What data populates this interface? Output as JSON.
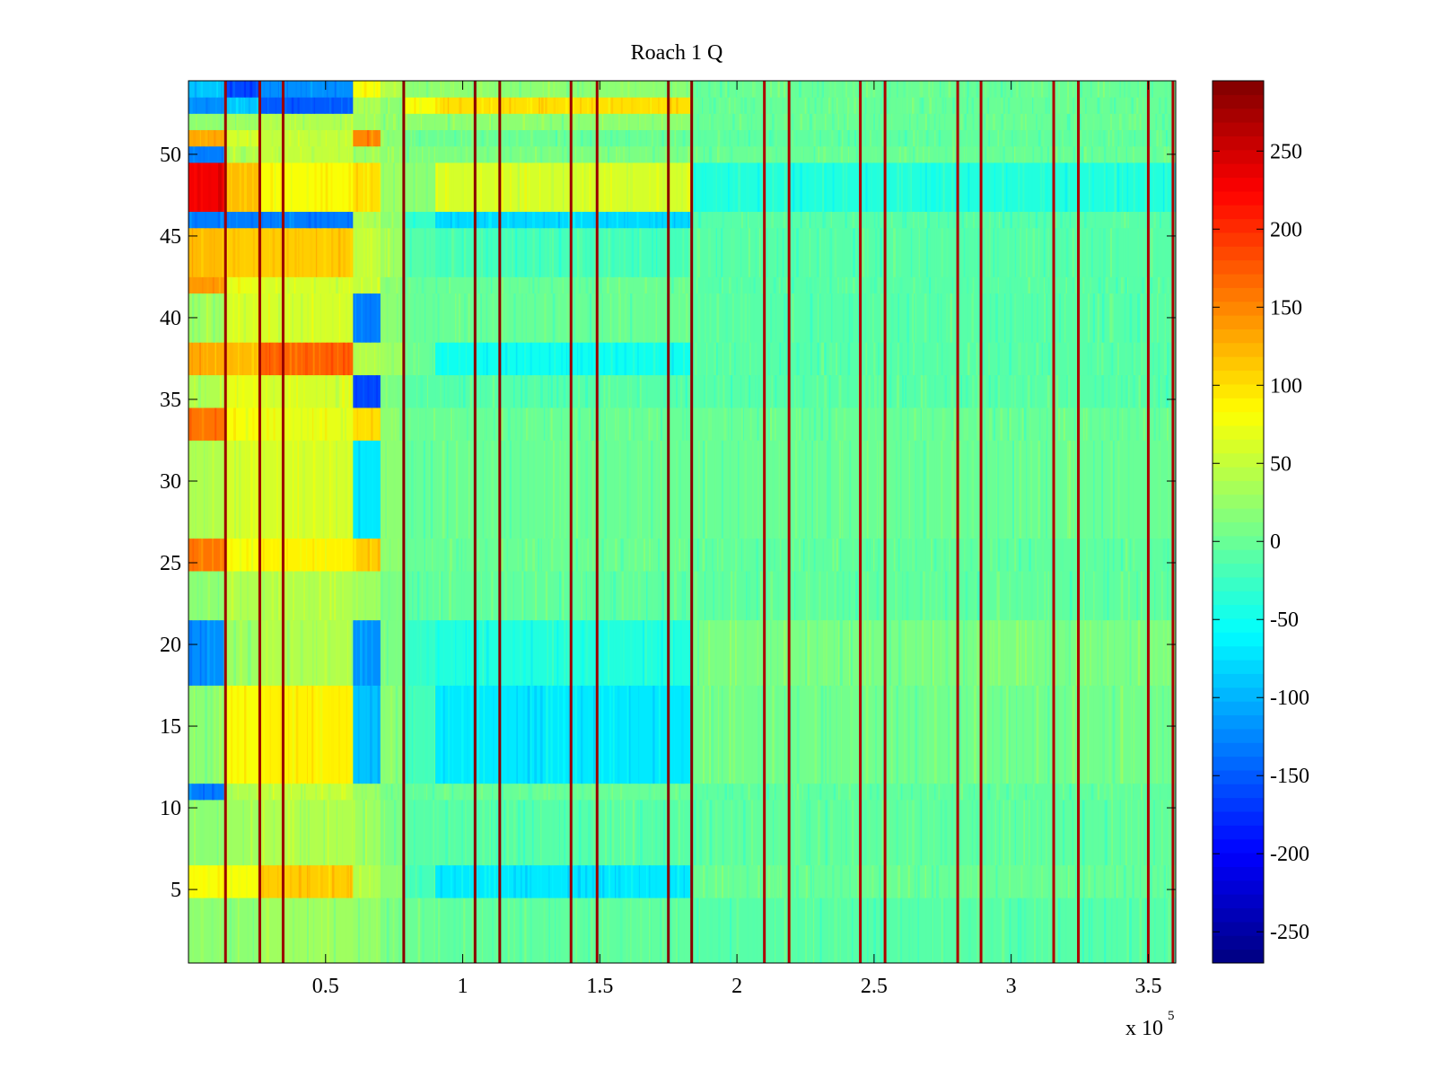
{
  "chart_data": {
    "type": "heatmap",
    "title": "Roach 1 Q",
    "xlabel": "",
    "ylabel": "",
    "x_range": [
      0,
      360000
    ],
    "y_range": [
      0.5,
      54.5
    ],
    "x_multiplier_label": "x 10",
    "x_multiplier_exponent": "5",
    "x_ticks": [
      {
        "value": 50000,
        "label": "0.5"
      },
      {
        "value": 100000,
        "label": "1"
      },
      {
        "value": 150000,
        "label": "1.5"
      },
      {
        "value": 200000,
        "label": "2"
      },
      {
        "value": 250000,
        "label": "2.5"
      },
      {
        "value": 300000,
        "label": "3"
      },
      {
        "value": 350000,
        "label": "3.5"
      }
    ],
    "y_ticks": [
      {
        "value": 5,
        "label": "5"
      },
      {
        "value": 10,
        "label": "10"
      },
      {
        "value": 15,
        "label": "15"
      },
      {
        "value": 20,
        "label": "20"
      },
      {
        "value": 25,
        "label": "25"
      },
      {
        "value": 30,
        "label": "30"
      },
      {
        "value": 35,
        "label": "35"
      },
      {
        "value": 40,
        "label": "40"
      },
      {
        "value": 45,
        "label": "45"
      },
      {
        "value": 50,
        "label": "50"
      }
    ],
    "colorbar": {
      "colormap": "jet",
      "range": [
        -270,
        295
      ],
      "ticks": [
        {
          "value": 250,
          "label": "250"
        },
        {
          "value": 200,
          "label": "200"
        },
        {
          "value": 150,
          "label": "150"
        },
        {
          "value": 100,
          "label": "100"
        },
        {
          "value": 50,
          "label": "50"
        },
        {
          "value": 0,
          "label": "0"
        },
        {
          "value": -50,
          "label": "-50"
        },
        {
          "value": -100,
          "label": "-100"
        },
        {
          "value": -150,
          "label": "-150"
        },
        {
          "value": -200,
          "label": "-200"
        },
        {
          "value": -250,
          "label": "-250"
        }
      ]
    },
    "rows": 54,
    "column_segments_x": [
      0,
      13000,
      26000,
      35000,
      60000,
      70000,
      78000,
      90000,
      184000,
      360000
    ],
    "segment_values": [
      {
        "rows": [
          1,
          4
        ],
        "values": [
          20,
          20,
          30,
          30,
          25,
          10,
          0,
          -5,
          -10
        ]
      },
      {
        "rows": [
          5,
          6
        ],
        "values": [
          80,
          80,
          110,
          110,
          40,
          20,
          -20,
          -70,
          0
        ]
      },
      {
        "rows": [
          7,
          10
        ],
        "values": [
          20,
          30,
          40,
          40,
          30,
          10,
          -10,
          -10,
          -5
        ]
      },
      {
        "rows": [
          11,
          11
        ],
        "values": [
          -130,
          40,
          50,
          50,
          30,
          10,
          -5,
          0,
          -5
        ]
      },
      {
        "rows": [
          12,
          17
        ],
        "values": [
          20,
          80,
          90,
          90,
          -90,
          20,
          -20,
          -70,
          5
        ]
      },
      {
        "rows": [
          18,
          21
        ],
        "values": [
          -120,
          30,
          40,
          40,
          -120,
          10,
          -30,
          -40,
          10
        ]
      },
      {
        "rows": [
          22,
          24
        ],
        "values": [
          20,
          40,
          40,
          40,
          30,
          10,
          -5,
          -5,
          -5
        ]
      },
      {
        "rows": [
          25,
          26
        ],
        "values": [
          160,
          80,
          90,
          90,
          110,
          20,
          0,
          0,
          -5
        ]
      },
      {
        "rows": [
          27,
          32
        ],
        "values": [
          40,
          60,
          60,
          60,
          -70,
          20,
          0,
          0,
          0
        ]
      },
      {
        "rows": [
          33,
          34
        ],
        "values": [
          160,
          80,
          70,
          70,
          100,
          20,
          0,
          0,
          0
        ]
      },
      {
        "rows": [
          35,
          36
        ],
        "values": [
          40,
          70,
          60,
          60,
          -160,
          10,
          -10,
          -10,
          -10
        ]
      },
      {
        "rows": [
          37,
          38
        ],
        "values": [
          130,
          120,
          170,
          170,
          40,
          30,
          0,
          -50,
          -10
        ]
      },
      {
        "rows": [
          39,
          41
        ],
        "values": [
          30,
          60,
          60,
          60,
          -130,
          20,
          0,
          0,
          -10
        ]
      },
      {
        "rows": [
          42,
          42
        ],
        "values": [
          140,
          70,
          60,
          60,
          50,
          20,
          0,
          0,
          -10
        ]
      },
      {
        "rows": [
          43,
          45
        ],
        "values": [
          120,
          110,
          110,
          110,
          50,
          30,
          -10,
          -20,
          -10
        ]
      },
      {
        "rows": [
          46,
          46
        ],
        "values": [
          -130,
          -130,
          -130,
          -130,
          40,
          20,
          -30,
          -80,
          -10
        ]
      },
      {
        "rows": [
          47,
          49
        ],
        "values": [
          230,
          120,
          80,
          80,
          100,
          30,
          20,
          60,
          -40
        ]
      },
      {
        "rows": [
          50,
          50
        ],
        "values": [
          -130,
          40,
          50,
          50,
          30,
          20,
          10,
          10,
          0
        ]
      },
      {
        "rows": [
          51,
          51
        ],
        "values": [
          130,
          60,
          50,
          50,
          150,
          20,
          0,
          0,
          -5
        ]
      },
      {
        "rows": [
          52,
          52
        ],
        "values": [
          20,
          30,
          40,
          40,
          30,
          20,
          20,
          20,
          0
        ]
      },
      {
        "rows": [
          53,
          53
        ],
        "values": [
          -120,
          -90,
          -150,
          -150,
          40,
          20,
          80,
          100,
          0
        ]
      },
      {
        "rows": [
          54,
          54
        ],
        "values": [
          -90,
          -160,
          -120,
          -120,
          80,
          40,
          20,
          20,
          0
        ]
      }
    ],
    "stripes": [
      {
        "x": 13500,
        "value": 280
      },
      {
        "x": 26000,
        "value": 280
      },
      {
        "x": 34500,
        "value": 280
      },
      {
        "x": 78500,
        "value": 290
      },
      {
        "x": 104500,
        "value": 290
      },
      {
        "x": 113500,
        "value": 290
      },
      {
        "x": 139500,
        "value": 280
      },
      {
        "x": 149000,
        "value": 280
      },
      {
        "x": 175000,
        "value": 290
      },
      {
        "x": 183500,
        "value": 290
      },
      {
        "x": 210000,
        "value": 270
      },
      {
        "x": 219000,
        "value": 270
      },
      {
        "x": 245000,
        "value": 270
      },
      {
        "x": 254000,
        "value": 270
      },
      {
        "x": 280500,
        "value": 270
      },
      {
        "x": 289000,
        "value": 270
      },
      {
        "x": 315500,
        "value": 270
      },
      {
        "x": 324500,
        "value": 270
      },
      {
        "x": 350000,
        "value": 270
      },
      {
        "x": 359000,
        "value": 270
      }
    ]
  }
}
